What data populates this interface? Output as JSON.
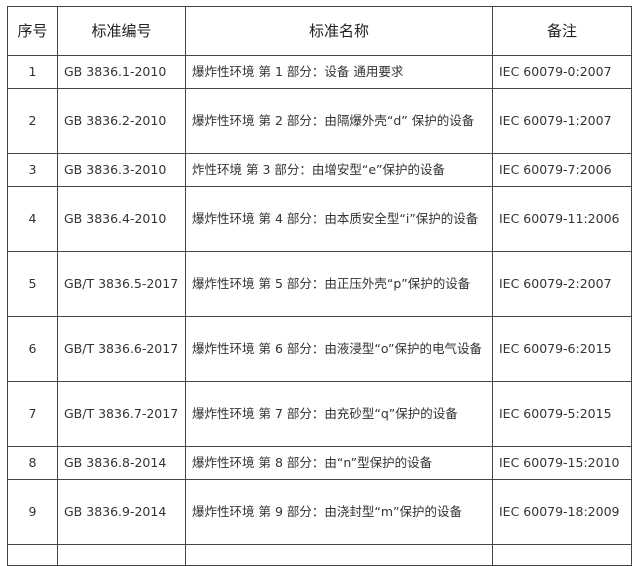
{
  "headers": [
    "序号",
    "标准编号",
    "标准名称",
    "备注"
  ],
  "rows": [
    {
      "no": "1",
      "code": "GB 3836.1-2010",
      "name": "爆炸性环境 第 1 部分：设备 通用要求",
      "note": "IEC 60079-0:2007"
    },
    {
      "no": "2",
      "code": "GB 3836.2-2010",
      "name": "爆炸性环境 第 2 部分：由隔爆外壳“d” 保护的设备",
      "note": "IEC 60079-1:2007"
    },
    {
      "no": "3",
      "code": "GB 3836.3-2010",
      "name": "炸性环境 第 3 部分：由增安型“e”保护的设备",
      "note": "IEC 60079-7:2006"
    },
    {
      "no": "4",
      "code": "GB 3836.4-2010",
      "name": "爆炸性环境 第 4 部分：由本质安全型“i”保护的设备",
      "note": "IEC 60079-11:2006"
    },
    {
      "no": "5",
      "code": "GB/T 3836.5-2017",
      "name": "爆炸性环境 第 5 部分：由正压外壳“p”保护的设备",
      "note": "IEC 60079-2:2007"
    },
    {
      "no": "6",
      "code": "GB/T 3836.6-2017",
      "name": "爆炸性环境 第 6 部分：由液浸型“o”保护的电气设备",
      "note": "IEC 60079-6:2015"
    },
    {
      "no": "7",
      "code": "GB/T 3836.7-2017",
      "name": "爆炸性环境 第 7 部分：由充砂型“q”保护的设备",
      "note": "IEC 60079-5:2015"
    },
    {
      "no": "8",
      "code": "GB 3836.8-2014",
      "name": "爆炸性环境 第 8 部分：由“n”型保护的设备",
      "note": "IEC 60079-15:2010"
    },
    {
      "no": "9",
      "code": "GB 3836.9-2014",
      "name": "爆炸性环境 第 9 部分：由浇封型“m”保护的设备",
      "note": "IEC 60079-18:2009"
    }
  ]
}
